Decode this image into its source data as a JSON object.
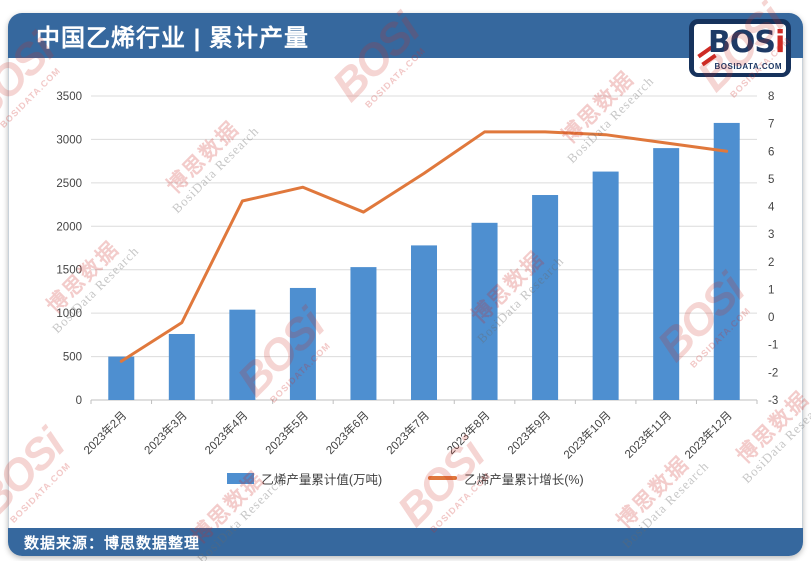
{
  "header": {
    "title": "中国乙烯行业 | 累计产量"
  },
  "logo": {
    "brand": "BOS",
    "brand_i": "i",
    "domain": "BOSIDATA.COM"
  },
  "footer": {
    "source": "数据来源：博思数据整理"
  },
  "watermark": {
    "brand": "BOSi",
    "domain": "BOSIDATA.COM",
    "brand_cn": "博思数据",
    "research": "BosiData Research"
  },
  "colors": {
    "header_blue": "#36689E",
    "bar_blue": "#4E8FD0",
    "line_orange": "#E0783C",
    "grid_gray": "#DCDCDC",
    "axis_line_gray": "#BFBFBF",
    "axis_text": "#444444",
    "logo_navy": "#16325C",
    "logo_red": "#CE2B25",
    "watermark_red": "#CE2B25"
  },
  "chart_data": {
    "type": "bar",
    "subtype": "bar+line combo, dual axis",
    "title": "中国乙烯行业 | 累计产量",
    "source": "数据来源：博思数据整理",
    "grid": true,
    "legend_position": "bottom",
    "categories": [
      "2023年2月",
      "2023年3月",
      "2023年4月",
      "2023年5月",
      "2023年6月",
      "2023年7月",
      "2023年8月",
      "2023年9月",
      "2023年10月",
      "2023年11月",
      "2023年12月"
    ],
    "series": [
      {
        "name": "乙烯产量累计值(万吨)",
        "type": "bar",
        "axis": "left",
        "color": "#4E8FD0",
        "values": [
          500,
          760,
          1040,
          1290,
          1530,
          1780,
          2040,
          2360,
          2630,
          2900,
          3190
        ]
      },
      {
        "name": "乙烯产量累计增长(%)",
        "type": "line",
        "axis": "right",
        "color": "#E0783C",
        "values": [
          -1.6,
          -0.2,
          4.2,
          4.7,
          3.8,
          5.2,
          6.7,
          6.7,
          6.6,
          6.3,
          6.0
        ]
      }
    ],
    "left_axis": {
      "min": 0,
      "max": 3500,
      "step": 500,
      "ticks": [
        "0",
        "500",
        "1000",
        "1500",
        "2000",
        "2500",
        "3000",
        "3500"
      ]
    },
    "right_axis": {
      "min": -3,
      "max": 8,
      "step": 1,
      "ticks": [
        "-3",
        "-2",
        "-1",
        "0",
        "1",
        "2",
        "3",
        "4",
        "5",
        "6",
        "7",
        "8"
      ]
    }
  }
}
